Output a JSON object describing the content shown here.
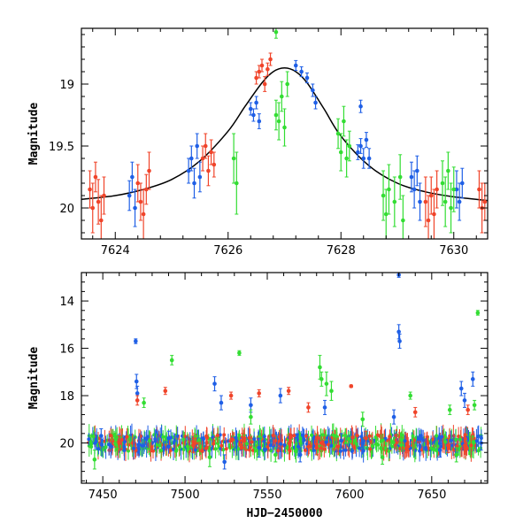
{
  "chart_data": [
    {
      "type": "scatter",
      "panel": "top",
      "xlabel": "",
      "ylabel": "Magnitude",
      "xlim": [
        7623.4,
        7630.6
      ],
      "ylim": [
        20.25,
        18.55
      ],
      "y_inverted": true,
      "x_ticks": [
        7624,
        7626,
        7628,
        7630
      ],
      "y_ticks": [
        19,
        19.5,
        20
      ],
      "colors": {
        "blue": "#1f5fe6",
        "red": "#f0442a",
        "green": "#33dd33",
        "model": "#000000"
      },
      "model_curve": {
        "x": [
          7623.4,
          7624.0,
          7624.5,
          7625.0,
          7625.5,
          7626.0,
          7626.3,
          7626.6,
          7626.8,
          7627.0,
          7627.2,
          7627.4,
          7627.7,
          7628.0,
          7628.5,
          7629.0,
          7629.5,
          7630.0,
          7630.6
        ],
        "y": [
          19.93,
          19.9,
          19.85,
          19.77,
          19.62,
          19.38,
          19.18,
          18.99,
          18.9,
          18.87,
          18.9,
          18.99,
          19.2,
          19.42,
          19.66,
          19.8,
          19.87,
          19.91,
          19.94
        ]
      },
      "series": [
        {
          "color": "red",
          "points": [
            {
              "x": 7623.55,
              "y": 19.85,
              "err": 0.15
            },
            {
              "x": 7623.6,
              "y": 20.0,
              "err": 0.2
            },
            {
              "x": 7623.65,
              "y": 19.75,
              "err": 0.12
            },
            {
              "x": 7623.7,
              "y": 19.95,
              "err": 0.18
            },
            {
              "x": 7623.75,
              "y": 20.1,
              "err": 0.2
            },
            {
              "x": 7623.8,
              "y": 19.9,
              "err": 0.15
            },
            {
              "x": 7624.4,
              "y": 19.8,
              "err": 0.15
            },
            {
              "x": 7624.45,
              "y": 19.95,
              "err": 0.15
            },
            {
              "x": 7624.5,
              "y": 20.05,
              "err": 0.2
            },
            {
              "x": 7624.55,
              "y": 19.85,
              "err": 0.12
            },
            {
              "x": 7624.6,
              "y": 19.7,
              "err": 0.15
            },
            {
              "x": 7625.55,
              "y": 19.6,
              "err": 0.1
            },
            {
              "x": 7625.6,
              "y": 19.5,
              "err": 0.1
            },
            {
              "x": 7625.65,
              "y": 19.7,
              "err": 0.12
            },
            {
              "x": 7625.7,
              "y": 19.55,
              "err": 0.1
            },
            {
              "x": 7625.75,
              "y": 19.65,
              "err": 0.1
            },
            {
              "x": 7626.5,
              "y": 18.95,
              "err": 0.05
            },
            {
              "x": 7626.55,
              "y": 18.9,
              "err": 0.05
            },
            {
              "x": 7626.6,
              "y": 18.85,
              "err": 0.05
            },
            {
              "x": 7626.65,
              "y": 19.0,
              "err": 0.06
            },
            {
              "x": 7626.7,
              "y": 18.88,
              "err": 0.05
            },
            {
              "x": 7626.75,
              "y": 18.8,
              "err": 0.05
            },
            {
              "x": 7629.5,
              "y": 19.95,
              "err": 0.2
            },
            {
              "x": 7629.55,
              "y": 20.1,
              "err": 0.2
            },
            {
              "x": 7629.6,
              "y": 19.9,
              "err": 0.15
            },
            {
              "x": 7629.65,
              "y": 20.05,
              "err": 0.2
            },
            {
              "x": 7629.7,
              "y": 19.85,
              "err": 0.15
            },
            {
              "x": 7630.45,
              "y": 19.85,
              "err": 0.15
            },
            {
              "x": 7630.5,
              "y": 20.0,
              "err": 0.2
            },
            {
              "x": 7630.55,
              "y": 19.95,
              "err": 0.15
            }
          ]
        },
        {
          "color": "blue",
          "points": [
            {
              "x": 7624.25,
              "y": 19.9,
              "err": 0.12
            },
            {
              "x": 7624.3,
              "y": 19.75,
              "err": 0.12
            },
            {
              "x": 7624.35,
              "y": 20.0,
              "err": 0.15
            },
            {
              "x": 7625.3,
              "y": 19.7,
              "err": 0.1
            },
            {
              "x": 7625.35,
              "y": 19.6,
              "err": 0.1
            },
            {
              "x": 7625.4,
              "y": 19.8,
              "err": 0.12
            },
            {
              "x": 7625.45,
              "y": 19.5,
              "err": 0.1
            },
            {
              "x": 7625.5,
              "y": 19.75,
              "err": 0.12
            },
            {
              "x": 7626.4,
              "y": 19.2,
              "err": 0.05
            },
            {
              "x": 7626.45,
              "y": 19.25,
              "err": 0.05
            },
            {
              "x": 7626.5,
              "y": 19.15,
              "err": 0.05
            },
            {
              "x": 7626.55,
              "y": 19.3,
              "err": 0.06
            },
            {
              "x": 7627.2,
              "y": 18.85,
              "err": 0.04
            },
            {
              "x": 7627.3,
              "y": 18.9,
              "err": 0.04
            },
            {
              "x": 7627.4,
              "y": 18.95,
              "err": 0.04
            },
            {
              "x": 7627.5,
              "y": 19.05,
              "err": 0.05
            },
            {
              "x": 7627.55,
              "y": 19.15,
              "err": 0.05
            },
            {
              "x": 7628.3,
              "y": 19.55,
              "err": 0.06
            },
            {
              "x": 7628.35,
              "y": 19.5,
              "err": 0.06
            },
            {
              "x": 7628.4,
              "y": 19.6,
              "err": 0.08
            },
            {
              "x": 7628.45,
              "y": 19.45,
              "err": 0.06
            },
            {
              "x": 7628.5,
              "y": 19.6,
              "err": 0.08
            },
            {
              "x": 7628.35,
              "y": 19.18,
              "err": 0.05
            },
            {
              "x": 7629.25,
              "y": 19.75,
              "err": 0.12
            },
            {
              "x": 7629.3,
              "y": 19.85,
              "err": 0.15
            },
            {
              "x": 7629.35,
              "y": 19.7,
              "err": 0.12
            },
            {
              "x": 7629.4,
              "y": 19.95,
              "err": 0.15
            },
            {
              "x": 7630.05,
              "y": 19.85,
              "err": 0.15
            },
            {
              "x": 7630.1,
              "y": 19.95,
              "err": 0.15
            },
            {
              "x": 7630.15,
              "y": 19.8,
              "err": 0.12
            }
          ]
        },
        {
          "color": "green",
          "points": [
            {
              "x": 7626.1,
              "y": 19.6,
              "err": 0.2
            },
            {
              "x": 7626.15,
              "y": 19.8,
              "err": 0.25
            },
            {
              "x": 7626.85,
              "y": 18.58,
              "err": 0.05
            },
            {
              "x": 7626.9,
              "y": 19.3,
              "err": 0.15
            },
            {
              "x": 7626.95,
              "y": 19.1,
              "err": 0.12
            },
            {
              "x": 7627.0,
              "y": 19.35,
              "err": 0.15
            },
            {
              "x": 7627.05,
              "y": 19.0,
              "err": 0.1
            },
            {
              "x": 7626.85,
              "y": 19.25,
              "err": 0.12
            },
            {
              "x": 7627.95,
              "y": 19.4,
              "err": 0.12
            },
            {
              "x": 7628.0,
              "y": 19.55,
              "err": 0.15
            },
            {
              "x": 7628.05,
              "y": 19.3,
              "err": 0.12
            },
            {
              "x": 7628.1,
              "y": 19.6,
              "err": 0.15
            },
            {
              "x": 7628.15,
              "y": 19.5,
              "err": 0.12
            },
            {
              "x": 7628.75,
              "y": 19.9,
              "err": 0.2
            },
            {
              "x": 7628.8,
              "y": 20.05,
              "err": 0.2
            },
            {
              "x": 7628.85,
              "y": 19.85,
              "err": 0.2
            },
            {
              "x": 7628.95,
              "y": 19.95,
              "err": 0.2
            },
            {
              "x": 7629.05,
              "y": 19.75,
              "err": 0.18
            },
            {
              "x": 7629.1,
              "y": 20.1,
              "err": 0.2
            },
            {
              "x": 7629.8,
              "y": 19.8,
              "err": 0.18
            },
            {
              "x": 7629.85,
              "y": 19.95,
              "err": 0.2
            },
            {
              "x": 7629.9,
              "y": 19.7,
              "err": 0.15
            },
            {
              "x": 7629.95,
              "y": 20.0,
              "err": 0.2
            },
            {
              "x": 7630.0,
              "y": 19.85,
              "err": 0.18
            }
          ]
        }
      ]
    },
    {
      "type": "scatter",
      "panel": "bottom",
      "xlabel": "HJD−2450000",
      "ylabel": "Magnitude",
      "xlim": [
        7437,
        7684
      ],
      "ylim": [
        21.7,
        12.8
      ],
      "y_inverted": true,
      "x_ticks": [
        7450,
        7500,
        7550,
        7600,
        7650
      ],
      "y_ticks": [
        14,
        16,
        18,
        20
      ],
      "colors": {
        "blue": "#1f5fe6",
        "red": "#f0442a",
        "green": "#33dd33"
      },
      "series": [
        {
          "color": "blue",
          "points": [
            {
              "x": 7630,
              "y": 12.9,
              "err": 0.1
            },
            {
              "x": 7630,
              "y": 15.3,
              "err": 0.3
            },
            {
              "x": 7630.5,
              "y": 15.7,
              "err": 0.3
            },
            {
              "x": 7470,
              "y": 15.7,
              "err": 0.1
            },
            {
              "x": 7470.5,
              "y": 17.4,
              "err": 0.3
            },
            {
              "x": 7471,
              "y": 17.9,
              "err": 0.3
            },
            {
              "x": 7518,
              "y": 17.5,
              "err": 0.3
            },
            {
              "x": 7522,
              "y": 18.3,
              "err": 0.3
            },
            {
              "x": 7540,
              "y": 18.4,
              "err": 0.3
            },
            {
              "x": 7558,
              "y": 18.0,
              "err": 0.3
            },
            {
              "x": 7585,
              "y": 18.5,
              "err": 0.3
            },
            {
              "x": 7627,
              "y": 18.9,
              "err": 0.3
            },
            {
              "x": 7668,
              "y": 17.7,
              "err": 0.3
            },
            {
              "x": 7670,
              "y": 18.2,
              "err": 0.3
            },
            {
              "x": 7675,
              "y": 17.3,
              "err": 0.3
            },
            {
              "x": 7449,
              "y": 19.7,
              "err": 0.3
            },
            {
              "x": 7490,
              "y": 19.8,
              "err": 0.3
            },
            {
              "x": 7524,
              "y": 20.8,
              "err": 0.3
            },
            {
              "x": 7545,
              "y": 20.2,
              "err": 0.4
            },
            {
              "x": 7570,
              "y": 20.5,
              "err": 0.3
            },
            {
              "x": 7595,
              "y": 19.9,
              "err": 0.3
            },
            {
              "x": 7655,
              "y": 20.3,
              "err": 0.3
            },
            {
              "x": 7680,
              "y": 20.0,
              "err": 0.3
            }
          ]
        },
        {
          "color": "red",
          "points": [
            {
              "x": 7471,
              "y": 18.2,
              "err": 0.2
            },
            {
              "x": 7488,
              "y": 17.8,
              "err": 0.15
            },
            {
              "x": 7528,
              "y": 18.0,
              "err": 0.15
            },
            {
              "x": 7545,
              "y": 17.9,
              "err": 0.15
            },
            {
              "x": 7563,
              "y": 17.8,
              "err": 0.15
            },
            {
              "x": 7601,
              "y": 17.6,
              "err": 0.05
            },
            {
              "x": 7575,
              "y": 18.5,
              "err": 0.2
            },
            {
              "x": 7640,
              "y": 18.7,
              "err": 0.2
            },
            {
              "x": 7672,
              "y": 18.6,
              "err": 0.2
            },
            {
              "x": 7460,
              "y": 20.0,
              "err": 0.3
            },
            {
              "x": 7505,
              "y": 20.1,
              "err": 0.3
            },
            {
              "x": 7535,
              "y": 19.9,
              "err": 0.3
            },
            {
              "x": 7580,
              "y": 20.2,
              "err": 0.3
            },
            {
              "x": 7610,
              "y": 19.8,
              "err": 0.3
            },
            {
              "x": 7660,
              "y": 20.1,
              "err": 0.3
            }
          ]
        },
        {
          "color": "green",
          "points": [
            {
              "x": 7678,
              "y": 14.5,
              "err": 0.1
            },
            {
              "x": 7533,
              "y": 16.2,
              "err": 0.1
            },
            {
              "x": 7492,
              "y": 16.5,
              "err": 0.2
            },
            {
              "x": 7582,
              "y": 16.8,
              "err": 0.5
            },
            {
              "x": 7586,
              "y": 17.5,
              "err": 0.5
            },
            {
              "x": 7583,
              "y": 17.3,
              "err": 0.3
            },
            {
              "x": 7589,
              "y": 17.8,
              "err": 0.4
            },
            {
              "x": 7475,
              "y": 18.3,
              "err": 0.2
            },
            {
              "x": 7637,
              "y": 18.0,
              "err": 0.15
            },
            {
              "x": 7676,
              "y": 18.4,
              "err": 0.2
            },
            {
              "x": 7661,
              "y": 18.6,
              "err": 0.2
            },
            {
              "x": 7540,
              "y": 18.9,
              "err": 0.3
            },
            {
              "x": 7608,
              "y": 19.0,
              "err": 0.3
            },
            {
              "x": 7445,
              "y": 20.7,
              "err": 0.4
            },
            {
              "x": 7515,
              "y": 20.6,
              "err": 0.4
            },
            {
              "x": 7555,
              "y": 20.5,
              "err": 0.3
            },
            {
              "x": 7620,
              "y": 20.6,
              "err": 0.3
            },
            {
              "x": 7665,
              "y": 20.5,
              "err": 0.3
            }
          ]
        }
      ],
      "dense_band": {
        "description": "",
        "y_center": 20.0,
        "y_spread": 0.35,
        "x_range": [
          7441,
          7681
        ],
        "colors": [
          "blue",
          "red",
          "green"
        ]
      }
    }
  ]
}
